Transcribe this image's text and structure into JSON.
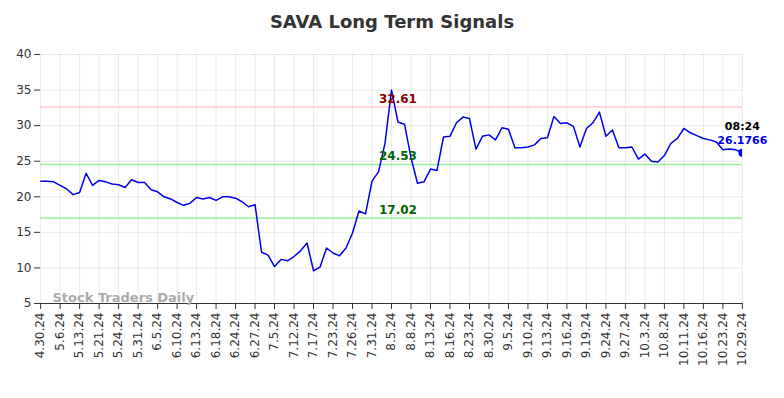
{
  "chart_data": {
    "type": "line",
    "title": "SAVA Long Term Signals",
    "categories": [
      "4.30.24",
      null,
      null,
      "5.6.24",
      null,
      null,
      "5.13.24",
      null,
      null,
      "5.21.24",
      null,
      null,
      "5.24.24",
      null,
      null,
      "5.31.24",
      null,
      null,
      "6.5.24",
      null,
      null,
      "6.10.24",
      null,
      null,
      "6.13.24",
      null,
      null,
      "6.18.24",
      null,
      null,
      "6.24.24",
      null,
      null,
      "6.27.24",
      null,
      null,
      "7.5.24",
      null,
      null,
      "7.12.24",
      null,
      null,
      "7.17.24",
      null,
      null,
      "7.23.24",
      null,
      null,
      "7.26.24",
      null,
      null,
      "7.31.24",
      null,
      null,
      "8.5.24",
      null,
      null,
      "8.8.24",
      null,
      null,
      "8.13.24",
      null,
      null,
      "8.16.24",
      null,
      null,
      "8.23.24",
      null,
      null,
      "8.30.24",
      null,
      null,
      "9.5.24",
      null,
      null,
      "9.10.24",
      null,
      null,
      "9.13.24",
      null,
      null,
      "9.16.24",
      null,
      null,
      "9.19.24",
      null,
      null,
      "9.24.24",
      null,
      null,
      "9.27.24",
      null,
      null,
      "10.3.24",
      null,
      null,
      "10.8.24",
      null,
      null,
      "10.11.24",
      null,
      null,
      "10.16.24",
      null,
      null,
      "10.23.24",
      null,
      null,
      "10.29.24"
    ],
    "values": [
      22.2,
      22.2,
      22.1,
      21.6,
      21.1,
      20.3,
      20.6,
      23.3,
      21.6,
      22.3,
      22.1,
      21.8,
      21.7,
      21.3,
      22.4,
      22.0,
      22.0,
      21.0,
      20.7,
      20.0,
      19.7,
      19.2,
      18.8,
      19.1,
      19.9,
      19.7,
      19.9,
      19.5,
      20.0,
      20.0,
      19.8,
      19.3,
      18.6,
      18.9,
      12.2,
      11.8,
      10.2,
      11.2,
      11.0,
      11.6,
      12.4,
      13.5,
      9.6,
      10.1,
      12.8,
      12.1,
      11.7,
      12.8,
      14.9,
      18.0,
      17.6,
      22.2,
      23.5,
      27.5,
      35.0,
      30.5,
      30.2,
      25.5,
      21.9,
      22.1,
      23.9,
      23.7,
      28.4,
      28.5,
      30.4,
      31.2,
      31.0,
      26.7,
      28.5,
      28.7,
      28.0,
      29.7,
      29.5,
      26.9,
      26.9,
      27.0,
      27.3,
      28.2,
      28.3,
      31.3,
      30.3,
      30.4,
      29.9,
      27.0,
      29.6,
      30.4,
      31.9,
      28.5,
      29.4,
      26.9,
      26.9,
      27.0,
      25.3,
      26.0,
      25.0,
      24.9,
      25.8,
      27.5,
      28.2,
      29.6,
      29.0,
      28.6,
      28.2,
      28.0,
      27.7,
      26.6,
      26.7,
      26.6,
      26.1766
    ],
    "color": "#0000ee",
    "ylim": [
      5,
      40
    ],
    "yticks": [
      5,
      10,
      15,
      20,
      25,
      30,
      35,
      40
    ],
    "grid": true,
    "reference_lines": [
      {
        "value": 32.61,
        "color": "#ffc8c8",
        "text_color": "#8b0000"
      },
      {
        "value": 24.53,
        "color": "#99ee99",
        "text_color": "#006400"
      },
      {
        "value": 17.02,
        "color": "#99ee99",
        "text_color": "#006400"
      }
    ],
    "last_point_time": "08:24",
    "watermark": "Stock Traders Daily"
  }
}
